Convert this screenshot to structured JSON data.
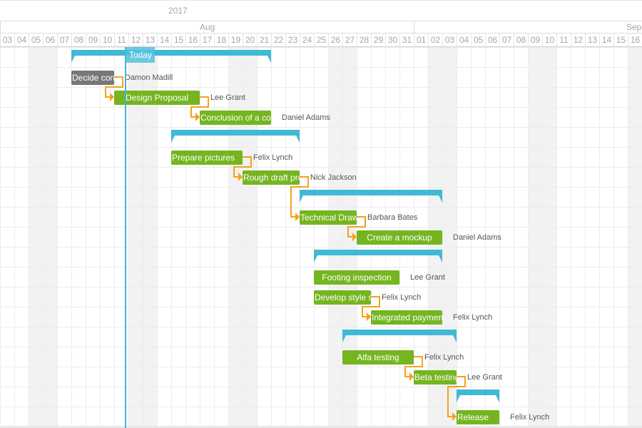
{
  "timeline": {
    "year": "2017",
    "months": [
      {
        "label": "Aug",
        "first_day_index": 0,
        "day_count": 29
      },
      {
        "label": "Sep",
        "first_day_index": 29,
        "day_count": 16
      }
    ],
    "first_date": "2017-08-03",
    "days": [
      "03",
      "04",
      "05",
      "06",
      "07",
      "08",
      "09",
      "10",
      "11",
      "12",
      "13",
      "14",
      "15",
      "16",
      "17",
      "18",
      "19",
      "20",
      "21",
      "22",
      "23",
      "24",
      "25",
      "26",
      "27",
      "28",
      "29",
      "30",
      "31",
      "01",
      "02",
      "03",
      "04",
      "05",
      "06",
      "07",
      "08",
      "09",
      "10",
      "11",
      "12",
      "13",
      "14",
      "15",
      "16"
    ]
  },
  "today": {
    "label": "Today",
    "date": "2017-08-11"
  },
  "colors": {
    "task": "#74b520",
    "task_done": "#777777",
    "summary": "#40b9d6",
    "link": "#f7a01b",
    "weekend": "#f2f2f2"
  },
  "rows": [
    {
      "type": "summary",
      "start": "2017-08-08",
      "end": "2017-08-22"
    },
    {
      "type": "task",
      "name": "Decide con",
      "assignee": "Damon Madill",
      "start": "2017-08-08",
      "end": "2017-08-11",
      "status": "done"
    },
    {
      "type": "task",
      "name": "Design Proposal",
      "assignee": "Lee Grant",
      "start": "2017-08-11",
      "end": "2017-08-17"
    },
    {
      "type": "task",
      "name": "Conclusion of a co",
      "assignee": "Daniel Adams",
      "start": "2017-08-17",
      "end": "2017-08-22"
    },
    {
      "type": "summary",
      "start": "2017-08-15",
      "end": "2017-08-24"
    },
    {
      "type": "task",
      "name": "Prepare pictures",
      "assignee": "Felix Lynch",
      "start": "2017-08-15",
      "end": "2017-08-20"
    },
    {
      "type": "task",
      "name": "Rough draft pre",
      "assignee": "Nick Jackson",
      "start": "2017-08-20",
      "end": "2017-08-24"
    },
    {
      "type": "summary",
      "start": "2017-08-24",
      "end": "2017-09-03"
    },
    {
      "type": "task",
      "name": "Technical Draw",
      "assignee": "Barbara Bates",
      "start": "2017-08-24",
      "end": "2017-08-28"
    },
    {
      "type": "task",
      "name": "Create a mockup",
      "assignee": "Daniel Adams",
      "start": "2017-08-28",
      "end": "2017-09-03"
    },
    {
      "type": "summary",
      "start": "2017-08-25",
      "end": "2017-09-03"
    },
    {
      "type": "task",
      "name": "Footing inspection",
      "assignee": "Lee Grant",
      "start": "2017-08-25",
      "end": "2017-08-31"
    },
    {
      "type": "task",
      "name": "Develop style s",
      "assignee": "Felix Lynch",
      "start": "2017-08-25",
      "end": "2017-08-29"
    },
    {
      "type": "task",
      "name": "Integrated paymen",
      "assignee": "Felix Lynch",
      "start": "2017-08-29",
      "end": "2017-09-03"
    },
    {
      "type": "summary",
      "start": "2017-08-27",
      "end": "2017-09-04"
    },
    {
      "type": "task",
      "name": "Alfa testing",
      "assignee": "Felix Lynch",
      "start": "2017-08-27",
      "end": "2017-09-01"
    },
    {
      "type": "task",
      "name": "Beta testing",
      "assignee": "Lee Grant",
      "start": "2017-09-01",
      "end": "2017-09-04"
    },
    {
      "type": "summary",
      "start": "2017-09-04",
      "end": "2017-09-07"
    },
    {
      "type": "task",
      "name": "Release",
      "assignee": "Felix Lynch",
      "start": "2017-09-04",
      "end": "2017-09-07"
    }
  ],
  "links": [
    [
      1,
      2
    ],
    [
      2,
      3
    ],
    [
      5,
      6
    ],
    [
      6,
      8
    ],
    [
      8,
      9
    ],
    [
      12,
      13
    ],
    [
      15,
      16
    ],
    [
      16,
      18
    ]
  ]
}
